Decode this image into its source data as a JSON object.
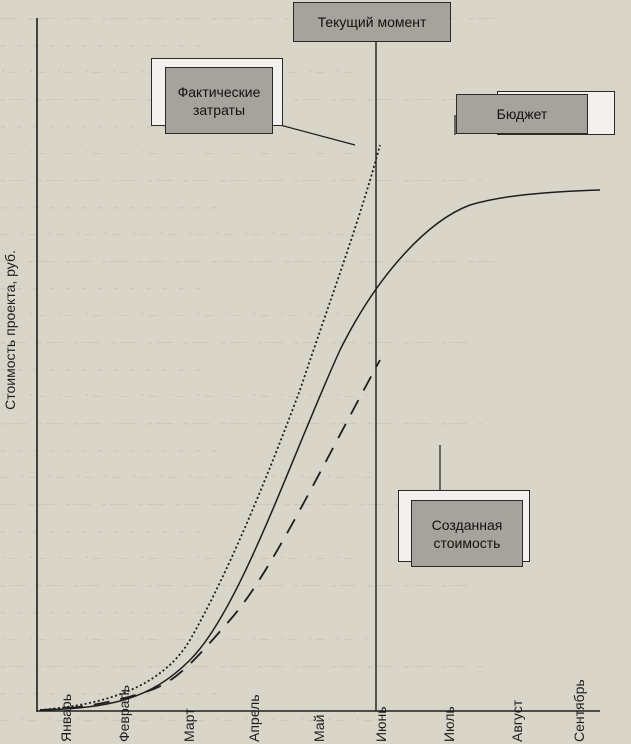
{
  "diagram": {
    "y_axis_label": "Стоимость проекта, руб.",
    "months": [
      "Январь",
      "Февраль",
      "Март",
      "Апрель",
      "Май",
      "Июнь",
      "Июль",
      "Август",
      "Сентябрь"
    ],
    "boxes": {
      "current_moment": "Текущий момент",
      "actual_costs": "Фактические затраты",
      "budget": "Бюджет",
      "earned_value": "Созданная стоимость"
    },
    "colors": {
      "background": "#d9d5c9",
      "box_dark": "#a6a39d",
      "box_light": "#f2f1ee",
      "line": "#1e1e1e"
    }
  }
}
